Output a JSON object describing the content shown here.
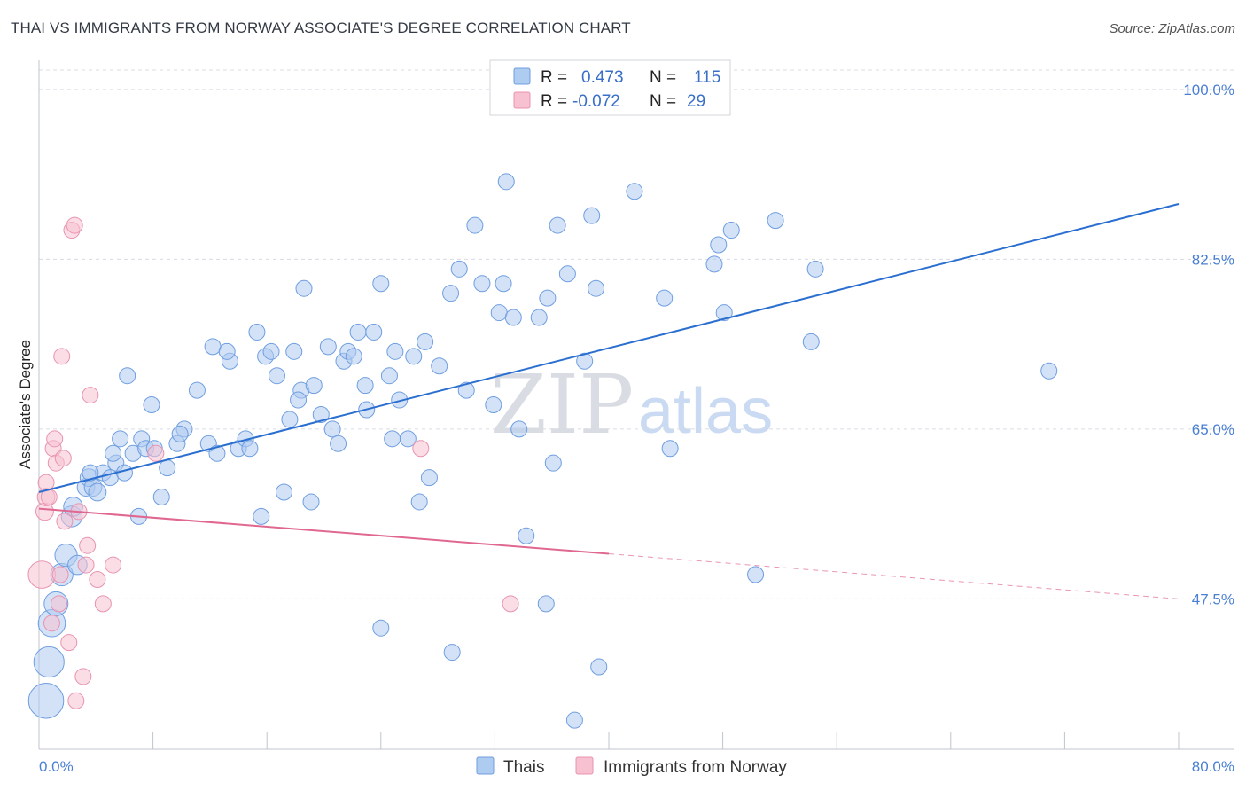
{
  "title": "THAI VS IMMIGRANTS FROM NORWAY ASSOCIATE'S DEGREE CORRELATION CHART",
  "source": "Source: ZipAtlas.com",
  "watermark": {
    "zip": "ZIP",
    "atlas": "atlas"
  },
  "colors": {
    "blue_fill": "#aecbf0",
    "blue_stroke": "#6f9ee0",
    "blue_line": "#2a6fd0",
    "pink_fill": "#f7c1d1",
    "pink_stroke": "#e894b0",
    "pink_line": "#e06890",
    "grid": "#d8dce2",
    "axis_label": "#4a7fd4"
  },
  "legend": {
    "rows": [
      {
        "r_label": "R =",
        "r_value": "0.473",
        "n_label": "N =",
        "n_value": "115"
      },
      {
        "r_label": "R =",
        "r_value": "-0.072",
        "n_label": "N =",
        "n_value": "29"
      }
    ]
  },
  "bottom_legend": [
    {
      "label": "Thais"
    },
    {
      "label": "Immigrants from Norway"
    }
  ],
  "chart_data": {
    "type": "scatter",
    "title": "THAI VS IMMIGRANTS FROM NORWAY ASSOCIATE'S DEGREE CORRELATION CHART",
    "xlabel": "",
    "ylabel": "Associate's Degree",
    "xlim": [
      0,
      80
    ],
    "ylim": [
      32,
      102
    ],
    "x_tick_labels": [
      "0.0%",
      "80.0%"
    ],
    "y_ticks": [
      47.5,
      65.0,
      82.5,
      100.0
    ],
    "y_tick_labels": [
      "47.5%",
      "65.0%",
      "82.5%",
      "100.0%"
    ],
    "grid": true,
    "series": [
      {
        "name": "Thais",
        "r": 0.473,
        "n": 115,
        "trend": {
          "x0": 0,
          "y0": 58.5,
          "x1": 80,
          "y1": 88.2,
          "dashed_after": null
        },
        "points": [
          [
            0.5,
            37,
            2.2
          ],
          [
            0.7,
            41,
            1.9
          ],
          [
            0.9,
            45,
            1.7
          ],
          [
            1.2,
            47,
            1.5
          ],
          [
            1.6,
            50,
            1.4
          ],
          [
            1.9,
            52,
            1.4
          ],
          [
            2.3,
            56,
            1.3
          ],
          [
            2.7,
            51,
            1.2
          ],
          [
            2.4,
            57,
            1.2
          ],
          [
            3.3,
            59,
            1.1
          ],
          [
            3.5,
            60,
            1.1
          ],
          [
            3.8,
            59,
            1.1
          ],
          [
            4.1,
            58.5,
            1.1
          ],
          [
            4.5,
            60.5,
            1.0
          ],
          [
            5.0,
            60,
            1.0
          ],
          [
            5.4,
            61.5,
            1.0
          ],
          [
            5.7,
            64,
            1.0
          ],
          [
            6.0,
            60.5,
            1.0
          ],
          [
            6.6,
            62.5,
            1.0
          ],
          [
            7.0,
            56,
            1.0
          ],
          [
            7.2,
            64,
            1.0
          ],
          [
            7.5,
            63,
            1.0
          ],
          [
            7.9,
            67.5,
            1.0
          ],
          [
            8.1,
            63,
            1.0
          ],
          [
            3.6,
            60.5,
            1.0
          ],
          [
            5.2,
            62.5,
            1.0
          ],
          [
            6.2,
            70.5,
            1.0
          ],
          [
            9.0,
            61,
            1.0
          ],
          [
            8.6,
            58,
            1.0
          ],
          [
            9.7,
            63.5,
            1.0
          ],
          [
            10.2,
            65,
            1.0
          ],
          [
            11.1,
            69,
            1.0
          ],
          [
            9.9,
            64.5,
            1.0
          ],
          [
            11.9,
            63.5,
            1.0
          ],
          [
            12.5,
            62.5,
            1.0
          ],
          [
            12.2,
            73.5,
            1.0
          ],
          [
            13.4,
            72,
            1.0
          ],
          [
            14.0,
            63,
            1.0
          ],
          [
            14.5,
            64,
            1.0
          ],
          [
            13.2,
            73,
            1.0
          ],
          [
            14.8,
            63,
            1.0
          ],
          [
            15.3,
            75,
            1.0
          ],
          [
            15.6,
            56,
            1.0
          ],
          [
            15.9,
            72.5,
            1.0
          ],
          [
            16.3,
            73,
            1.0
          ],
          [
            16.7,
            70.5,
            1.0
          ],
          [
            17.2,
            58.5,
            1.0
          ],
          [
            17.6,
            66,
            1.0
          ],
          [
            17.9,
            73,
            1.0
          ],
          [
            18.4,
            69,
            1.0
          ],
          [
            18.2,
            68,
            1.0
          ],
          [
            18.6,
            79.5,
            1.0
          ],
          [
            19.3,
            69.5,
            1.0
          ],
          [
            19.1,
            57.5,
            1.0
          ],
          [
            19.8,
            66.5,
            1.0
          ],
          [
            20.3,
            73.5,
            1.0
          ],
          [
            20.6,
            65,
            1.0
          ],
          [
            21.0,
            63.5,
            1.0
          ],
          [
            21.4,
            72,
            1.0
          ],
          [
            21.7,
            73,
            1.0
          ],
          [
            22.1,
            72.5,
            1.0
          ],
          [
            22.4,
            75,
            1.0
          ],
          [
            22.9,
            69.5,
            1.0
          ],
          [
            23.0,
            67,
            1.0
          ],
          [
            23.5,
            75,
            1.0
          ],
          [
            24.0,
            80,
            1.0
          ],
          [
            24.6,
            70.5,
            1.0
          ],
          [
            25.0,
            73,
            1.0
          ],
          [
            25.3,
            68,
            1.0
          ],
          [
            24.8,
            64,
            1.0
          ],
          [
            25.9,
            64,
            1.0
          ],
          [
            26.3,
            72.5,
            1.0
          ],
          [
            26.7,
            57.5,
            1.0
          ],
          [
            27.1,
            74,
            1.0
          ],
          [
            27.4,
            60,
            1.0
          ],
          [
            28.1,
            71.5,
            1.0
          ],
          [
            28.9,
            79,
            1.0
          ],
          [
            29.5,
            81.5,
            1.0
          ],
          [
            30.0,
            69,
            1.0
          ],
          [
            30.6,
            86,
            1.0
          ],
          [
            31.1,
            80,
            1.0
          ],
          [
            31.9,
            67.5,
            1.0
          ],
          [
            32.3,
            77,
            1.0
          ],
          [
            32.6,
            80,
            1.0
          ],
          [
            32.8,
            90.5,
            1.0
          ],
          [
            33.3,
            76.5,
            1.0
          ],
          [
            33.7,
            65,
            1.0
          ],
          [
            34.2,
            54,
            1.0
          ],
          [
            35.1,
            76.5,
            1.0
          ],
          [
            35.7,
            78.5,
            1.0
          ],
          [
            36.1,
            61.5,
            1.0
          ],
          [
            36.4,
            86,
            1.0
          ],
          [
            37.1,
            81,
            1.0
          ],
          [
            37.6,
            35,
            1.0
          ],
          [
            38.3,
            72,
            1.0
          ],
          [
            38.8,
            87,
            1.0
          ],
          [
            39.1,
            79.5,
            1.0
          ],
          [
            39.3,
            40.5,
            1.0
          ],
          [
            41.8,
            89.5,
            1.0
          ],
          [
            43.9,
            78.5,
            1.0
          ],
          [
            44.3,
            63,
            1.0
          ],
          [
            47.4,
            82,
            1.0
          ],
          [
            47.7,
            84,
            1.0
          ],
          [
            48.1,
            77,
            1.0
          ],
          [
            48.6,
            85.5,
            1.0
          ],
          [
            50.3,
            50,
            1.0
          ],
          [
            51.7,
            86.5,
            1.0
          ],
          [
            54.5,
            81.5,
            1.0
          ],
          [
            54.2,
            74,
            1.0
          ],
          [
            35.6,
            47,
            1.0
          ],
          [
            29.0,
            42,
            1.0
          ],
          [
            24.0,
            44.5,
            1.0
          ],
          [
            70.9,
            71,
            1.0
          ]
        ]
      },
      {
        "name": "Immigrants from Norway",
        "r": -0.072,
        "n": 29,
        "trend": {
          "x0": 0,
          "y0": 56.8,
          "x1": 80,
          "y1": 47.5,
          "solid_until_x": 40
        },
        "points": [
          [
            0.2,
            50,
            1.7
          ],
          [
            0.4,
            56.5,
            1.1
          ],
          [
            0.5,
            58,
            1.1
          ],
          [
            0.5,
            59.5,
            1.0
          ],
          [
            0.7,
            58,
            1.0
          ],
          [
            0.9,
            45,
            1.0
          ],
          [
            1.0,
            63,
            1.0
          ],
          [
            1.1,
            64,
            1.0
          ],
          [
            1.2,
            61.5,
            1.0
          ],
          [
            1.4,
            47,
            1.0
          ],
          [
            1.5,
            50,
            1.0
          ],
          [
            1.6,
            72.5,
            1.0
          ],
          [
            1.7,
            62,
            1.0
          ],
          [
            1.8,
            55.5,
            1.0
          ],
          [
            2.1,
            43,
            1.0
          ],
          [
            2.3,
            85.5,
            1.0
          ],
          [
            2.5,
            86,
            1.0
          ],
          [
            2.6,
            37,
            1.0
          ],
          [
            2.8,
            56.5,
            1.0
          ],
          [
            3.1,
            39.5,
            1.0
          ],
          [
            3.3,
            51,
            1.0
          ],
          [
            3.4,
            53,
            1.0
          ],
          [
            3.6,
            68.5,
            1.0
          ],
          [
            4.1,
            49.5,
            1.0
          ],
          [
            4.5,
            47,
            1.0
          ],
          [
            5.2,
            51,
            1.0
          ],
          [
            8.2,
            62.5,
            1.0
          ],
          [
            26.8,
            63,
            1.0
          ],
          [
            33.1,
            47,
            1.0
          ]
        ]
      }
    ]
  }
}
